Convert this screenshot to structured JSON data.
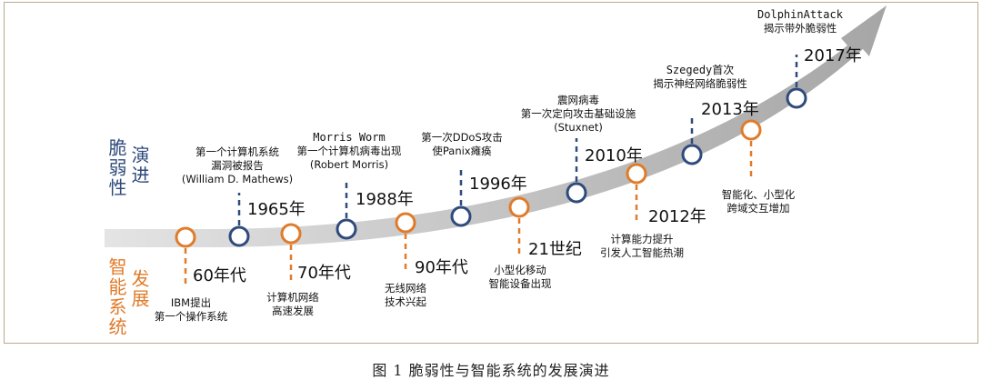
{
  "side_labels": {
    "vulnerability": [
      "脆弱性",
      "演进"
    ],
    "system": [
      "智能系统",
      "发展"
    ]
  },
  "caption": "图 1   脆弱性与智能系统的发展演进",
  "colors": {
    "blue": "#2f4b7c",
    "orange": "#e07b2a",
    "arrow": "#b4b4b4"
  },
  "system_milestones": [
    {
      "era": "60年代",
      "lines": [
        "IBM提出",
        "第一个操作系统"
      ]
    },
    {
      "era": "70年代",
      "lines": [
        "计算机网络",
        "高速发展"
      ]
    },
    {
      "era": "90年代",
      "lines": [
        "无线网络",
        "技术兴起"
      ]
    },
    {
      "era": "21世纪",
      "lines": [
        "小型化移动",
        "智能设备出现"
      ]
    },
    {
      "era": "2012年",
      "lines": [
        "计算能力提升",
        "引发人工智能热潮"
      ]
    },
    {
      "era": "",
      "lines": [
        "智能化、小型化",
        "跨域交互增加"
      ]
    }
  ],
  "vulnerability_milestones": [
    {
      "year": "1965年",
      "lines": [
        "第一个计算机系统",
        "漏洞被报告",
        "(William D. Mathews)"
      ]
    },
    {
      "year": "1988年",
      "lines": [
        "Morris Worm",
        "第一个计算机病毒出现",
        "(Robert Morris)"
      ]
    },
    {
      "year": "1996年",
      "lines": [
        "第一次DDoS攻击",
        "使Panix瘫痪"
      ]
    },
    {
      "year": "2010年",
      "lines": [
        "震网病毒",
        "第一次定向攻击基础设施",
        "(Stuxnet)"
      ]
    },
    {
      "year": "2013年",
      "lines": [
        "Szegedy首次",
        "揭示神经网络脆弱性"
      ]
    },
    {
      "year": "2017年",
      "lines": [
        "DolphinAttack",
        "揭示带外脆弱性"
      ]
    }
  ]
}
